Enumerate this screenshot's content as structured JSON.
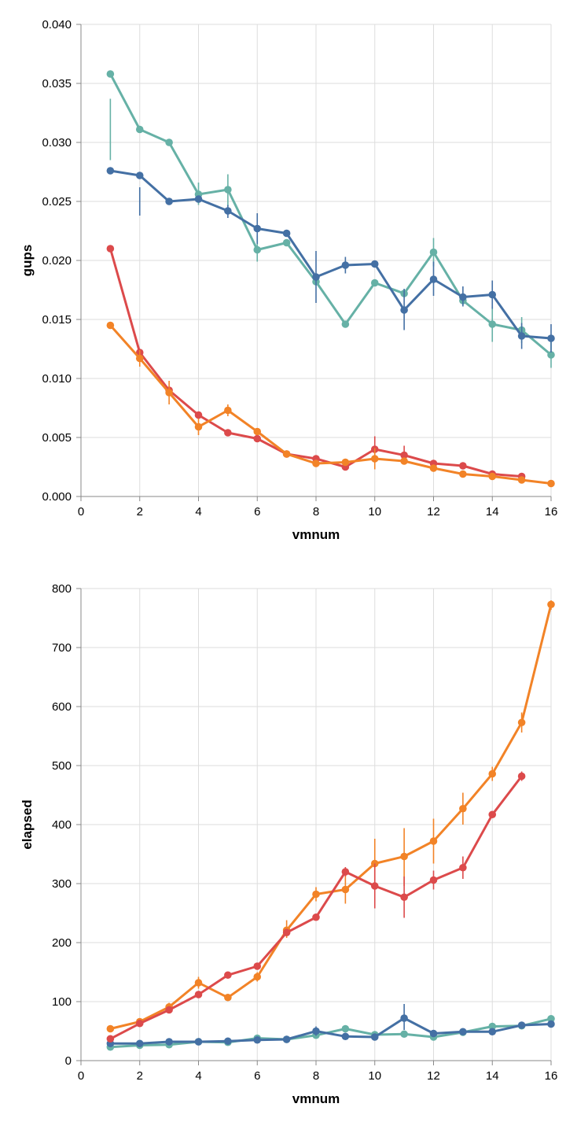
{
  "chart_data": [
    {
      "type": "line",
      "xlabel": "vmnum",
      "ylabel": "gups",
      "xlim": [
        0,
        16
      ],
      "ylim": [
        0,
        0.04
      ],
      "xticks": [
        "0",
        "2",
        "4",
        "6",
        "8",
        "10",
        "12",
        "14",
        "16"
      ],
      "yticks": [
        "0.000",
        "0.005",
        "0.010",
        "0.015",
        "0.020",
        "0.025",
        "0.030",
        "0.035",
        "0.040"
      ],
      "ytick_values": [
        0,
        0.005,
        0.01,
        0.015,
        0.02,
        0.025,
        0.03,
        0.035,
        0.04
      ],
      "series": [
        {
          "name": "teal",
          "color": "#66b1a6",
          "x": [
            1,
            2,
            3,
            4,
            5,
            6,
            7,
            8,
            9,
            10,
            11,
            12,
            13,
            14,
            15,
            16
          ],
          "values": [
            0.0358,
            0.0311,
            0.03,
            0.0256,
            0.026,
            0.0209,
            0.0215,
            0.0182,
            0.0146,
            0.0181,
            0.0172,
            0.0207,
            0.0166,
            0.0146,
            0.0141,
            0.012
          ],
          "err": [
            [
              1,
              0.0285,
              0.0337
            ],
            [
              4,
              0.0247,
              0.0266
            ],
            [
              5,
              0.0246,
              0.0273
            ],
            [
              6,
              0.0199,
              0.0221
            ],
            [
              12,
              0.0195,
              0.0219
            ],
            [
              14,
              0.0131,
              0.0161
            ],
            [
              15,
              0.013,
              0.0152
            ],
            [
              16,
              0.0109,
              0.0131
            ]
          ]
        },
        {
          "name": "blue",
          "color": "#4470a4",
          "x": [
            1,
            2,
            3,
            4,
            5,
            6,
            7,
            8,
            9,
            10,
            11,
            12,
            13,
            14,
            15,
            16
          ],
          "values": [
            0.0276,
            0.0272,
            0.025,
            0.0252,
            0.0242,
            0.0227,
            0.0223,
            0.0186,
            0.0196,
            0.0197,
            0.0158,
            0.0184,
            0.0169,
            0.0171,
            0.0136,
            0.0134
          ],
          "err": [
            [
              2,
              0.0238,
              0.0262
            ],
            [
              5,
              0.0236,
              0.0247
            ],
            [
              6,
              0.0214,
              0.024
            ],
            [
              8,
              0.0164,
              0.0208
            ],
            [
              9,
              0.0189,
              0.0203
            ],
            [
              11,
              0.0141,
              0.0176
            ],
            [
              12,
              0.017,
              0.0199
            ],
            [
              13,
              0.0161,
              0.0178
            ],
            [
              14,
              0.0159,
              0.0183
            ],
            [
              15,
              0.0125,
              0.0147
            ],
            [
              16,
              0.0122,
              0.0146
            ]
          ]
        },
        {
          "name": "red",
          "color": "#dc4a4b",
          "x": [
            1,
            2,
            3,
            4,
            5,
            6,
            7,
            8,
            9,
            10,
            11,
            12,
            13,
            14,
            15
          ],
          "values": [
            0.021,
            0.0122,
            0.009,
            0.0069,
            0.0054,
            0.0049,
            0.0036,
            0.0032,
            0.0025,
            0.004,
            0.0035,
            0.0028,
            0.0026,
            0.0019,
            0.0017
          ],
          "err": [
            [
              10,
              0.0031,
              0.0051
            ],
            [
              11,
              0.0027,
              0.0043
            ]
          ]
        },
        {
          "name": "orange",
          "color": "#f28327",
          "x": [
            1,
            2,
            3,
            4,
            5,
            6,
            7,
            8,
            9,
            10,
            11,
            12,
            13,
            14,
            15,
            16
          ],
          "values": [
            0.0145,
            0.0117,
            0.0088,
            0.0059,
            0.0073,
            0.0055,
            0.0036,
            0.0028,
            0.0029,
            0.0032,
            0.003,
            0.0024,
            0.0019,
            0.0017,
            0.0014,
            0.0011
          ],
          "err": [
            [
              2,
              0.011,
              0.0124
            ],
            [
              3,
              0.0078,
              0.0098
            ],
            [
              4,
              0.0052,
              0.0066
            ],
            [
              5,
              0.0068,
              0.0078
            ],
            [
              10,
              0.0023,
              0.0041
            ]
          ]
        }
      ]
    },
    {
      "type": "line",
      "xlabel": "vmnum",
      "ylabel": "elapsed",
      "xlim": [
        0,
        16
      ],
      "ylim": [
        0,
        800
      ],
      "xticks": [
        "0",
        "2",
        "4",
        "6",
        "8",
        "10",
        "12",
        "14",
        "16"
      ],
      "yticks": [
        "0",
        "100",
        "200",
        "300",
        "400",
        "500",
        "600",
        "700",
        "800"
      ],
      "ytick_values": [
        0,
        100,
        200,
        300,
        400,
        500,
        600,
        700,
        800
      ],
      "series": [
        {
          "name": "teal",
          "color": "#66b1a6",
          "x": [
            1,
            2,
            3,
            4,
            5,
            6,
            7,
            8,
            9,
            10,
            11,
            12,
            13,
            14,
            15,
            16
          ],
          "values": [
            23,
            26,
            27,
            32,
            31,
            38,
            36,
            43,
            54,
            44,
            45,
            40,
            48,
            58,
            59,
            71
          ],
          "err": []
        },
        {
          "name": "blue",
          "color": "#4470a4",
          "x": [
            1,
            2,
            3,
            4,
            5,
            6,
            7,
            8,
            9,
            10,
            11,
            12,
            13,
            14,
            15,
            16
          ],
          "values": [
            29,
            29,
            32,
            32,
            33,
            35,
            36,
            50,
            41,
            40,
            72,
            46,
            49,
            49,
            60,
            62
          ],
          "err": [
            [
              8,
              42,
              58
            ],
            [
              11,
              52,
              96
            ]
          ]
        },
        {
          "name": "orange",
          "color": "#f28327",
          "x": [
            1,
            2,
            3,
            4,
            5,
            6,
            7,
            8,
            9,
            10,
            11,
            12,
            13,
            14,
            15,
            16
          ],
          "values": [
            54,
            66,
            91,
            132,
            107,
            142,
            221,
            282,
            290,
            334,
            346,
            372,
            427,
            486,
            573,
            773
          ],
          "err": [
            [
              3,
              84,
              98
            ],
            [
              4,
              122,
              142
            ],
            [
              6,
              134,
              150
            ],
            [
              7,
              208,
              238
            ],
            [
              8,
              270,
              294
            ],
            [
              9,
              266,
              316
            ],
            [
              10,
              296,
              376
            ],
            [
              11,
              296,
              394
            ],
            [
              12,
              334,
              410
            ],
            [
              13,
              400,
              454
            ],
            [
              14,
              474,
              498
            ],
            [
              15,
              556,
              590
            ],
            [
              16,
              764,
              780
            ]
          ]
        },
        {
          "name": "red",
          "color": "#dc4a4b",
          "x": [
            1,
            2,
            3,
            4,
            5,
            6,
            7,
            8,
            9,
            10,
            11,
            12,
            13,
            14,
            15
          ],
          "values": [
            37,
            63,
            86,
            112,
            145,
            160,
            217,
            243,
            320,
            296,
            277,
            306,
            327,
            417,
            482
          ],
          "err": [
            [
              9,
              312,
              328
            ],
            [
              10,
              258,
              334
            ],
            [
              11,
              242,
              312
            ],
            [
              12,
              290,
              322
            ],
            [
              13,
              308,
              346
            ],
            [
              15,
              474,
              490
            ]
          ]
        }
      ]
    }
  ]
}
